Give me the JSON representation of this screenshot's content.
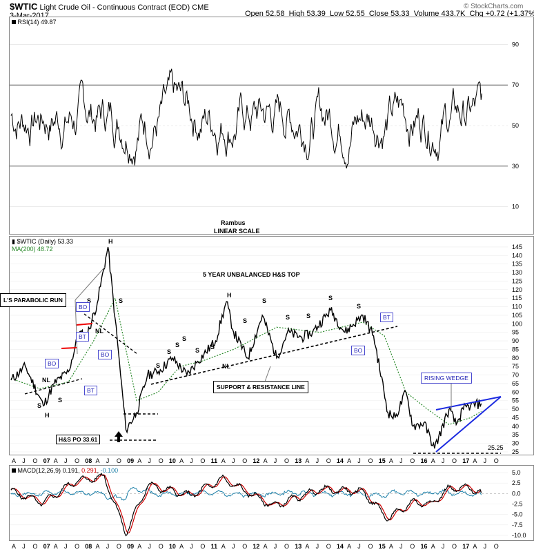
{
  "header": {
    "symbol": "$WTIC",
    "name": "Light Crude Oil - Continuous Contract (EOD)",
    "exchange": "CME",
    "date": "3-Mar-2017",
    "open_label": "Open",
    "open": "52.58",
    "high_label": "High",
    "high": "53.39",
    "low_label": "Low",
    "low": "52.55",
    "close_label": "Close",
    "close": "53.33",
    "volume_label": "Volume",
    "volume": "433.7K",
    "chg_label": "Chg",
    "chg": "+0.72 (+1.37%)",
    "brand": "© StockCharts.com"
  },
  "rsi_panel": {
    "legend": "RSI(14) 49.87",
    "ticks": [
      "90",
      "70",
      "50",
      "30",
      "10"
    ],
    "tick_values": [
      90,
      70,
      50,
      30,
      10
    ],
    "ylim": [
      0,
      100
    ],
    "author": "Rambus",
    "scale_note": "LINEAR SCALE"
  },
  "price_panel": {
    "legend": "$WTIC (Daily) 53.33",
    "ma_legend": "MA(200) 48.72",
    "title": "5 YEAR UNBALANCED H&S TOP",
    "ticks": [
      "145",
      "140",
      "135",
      "130",
      "125",
      "120",
      "115",
      "110",
      "105",
      "100",
      "95",
      "90",
      "85",
      "80",
      "75",
      "70",
      "65",
      "60",
      "55",
      "50",
      "45",
      "40",
      "35",
      "30",
      "25"
    ],
    "annotations": {
      "parabolic": "L'S PARABOLIC RUN",
      "hs_po": "H&S PO 33.61",
      "support": "SUPPORT & RESISTANCE LINE",
      "rising_wedge": "RISING WEDGE",
      "bo": "BO",
      "bt": "BT",
      "nl": "NL",
      "h": "H",
      "s": "S",
      "level": "25.25"
    }
  },
  "macd_panel": {
    "legend_name": "MACD(12,26,9)",
    "macd": "0.191",
    "signal": "0.291",
    "hist": "-0.100",
    "ticks": [
      "5.0",
      "2.5",
      "0.0",
      "-2.5",
      "-5.0",
      "-7.5",
      "-10.0"
    ],
    "tick_values": [
      5,
      2.5,
      0,
      -2.5,
      -5,
      -7.5,
      -10
    ]
  },
  "x_axis": {
    "labels": [
      "A",
      "J",
      "O",
      "07",
      "A",
      "J",
      "O",
      "08",
      "A",
      "J",
      "O",
      "09",
      "A",
      "J",
      "O",
      "10",
      "A",
      "J",
      "O",
      "11",
      "A",
      "J",
      "O",
      "12",
      "A",
      "J",
      "O",
      "13",
      "A",
      "J",
      "O",
      "14",
      "A",
      "J",
      "O",
      "15",
      "A",
      "J",
      "O",
      "16",
      "A",
      "J",
      "O",
      "17",
      "A",
      "J",
      "O"
    ]
  },
  "chart_data": {
    "type": "line",
    "title": "5 YEAR UNBALANCED H&S TOP",
    "x_range": [
      "2006-04",
      "2017-10"
    ],
    "ylim": [
      25,
      147
    ],
    "series": [
      {
        "name": "$WTIC (Daily)",
        "x": [
          "2006-04",
          "2006-08",
          "2007-01",
          "2007-04",
          "2007-08",
          "2007-11",
          "2008-01",
          "2008-04",
          "2008-07",
          "2008-09",
          "2008-12",
          "2009-03",
          "2009-06",
          "2009-09",
          "2010-01",
          "2010-05",
          "2010-08",
          "2011-01",
          "2011-04",
          "2011-06",
          "2011-10",
          "2012-02",
          "2012-06",
          "2012-09",
          "2013-01",
          "2013-04",
          "2013-09",
          "2014-01",
          "2014-06",
          "2014-09",
          "2015-01",
          "2015-03",
          "2015-06",
          "2015-08",
          "2015-11",
          "2016-02",
          "2016-06",
          "2016-08",
          "2016-10",
          "2016-12",
          "2017-03"
        ],
        "values": [
          67,
          75,
          52,
          65,
          72,
          95,
          92,
          112,
          145,
          103,
          38,
          48,
          70,
          72,
          80,
          70,
          78,
          90,
          113,
          95,
          80,
          105,
          80,
          95,
          92,
          95,
          108,
          95,
          105,
          93,
          48,
          45,
          60,
          40,
          42,
          27,
          50,
          41,
          50,
          52,
          53.33
        ]
      },
      {
        "name": "MA(200)",
        "x": [
          "2006-04",
          "2006-12",
          "2007-08",
          "2008-03",
          "2008-09",
          "2009-03",
          "2009-09",
          "2010-03",
          "2010-09",
          "2011-06",
          "2012-06",
          "2013-06",
          "2014-06",
          "2014-12",
          "2015-06",
          "2015-12",
          "2016-06",
          "2016-12",
          "2017-03"
        ],
        "values": [
          68,
          62,
          66,
          90,
          115,
          55,
          60,
          75,
          78,
          85,
          98,
          95,
          101,
          93,
          60,
          50,
          41,
          45,
          48.72
        ]
      }
    ],
    "rsi": {
      "name": "RSI(14)",
      "last": 49.87
    },
    "macd": {
      "name": "MACD(12,26,9)",
      "last": 0.191,
      "signal": 0.291,
      "hist": -0.1,
      "x": [
        "2006-04",
        "2007-01",
        "2007-10",
        "2008-06",
        "2008-12",
        "2009-06",
        "2010-06",
        "2011-03",
        "2012-05",
        "2013-06",
        "2014-06",
        "2015-01",
        "2015-08",
        "2016-01",
        "2016-06",
        "2016-12",
        "2017-03"
      ],
      "values": [
        0.5,
        -2.2,
        3.0,
        4.0,
        -9.5,
        2.0,
        -0.5,
        3.5,
        -3.0,
        1.0,
        0.5,
        -6.0,
        -2.0,
        -2.5,
        1.2,
        1.3,
        0.191
      ]
    },
    "levels": {
      "hs_price_objective": 33.61,
      "low_line": 25.25
    }
  }
}
